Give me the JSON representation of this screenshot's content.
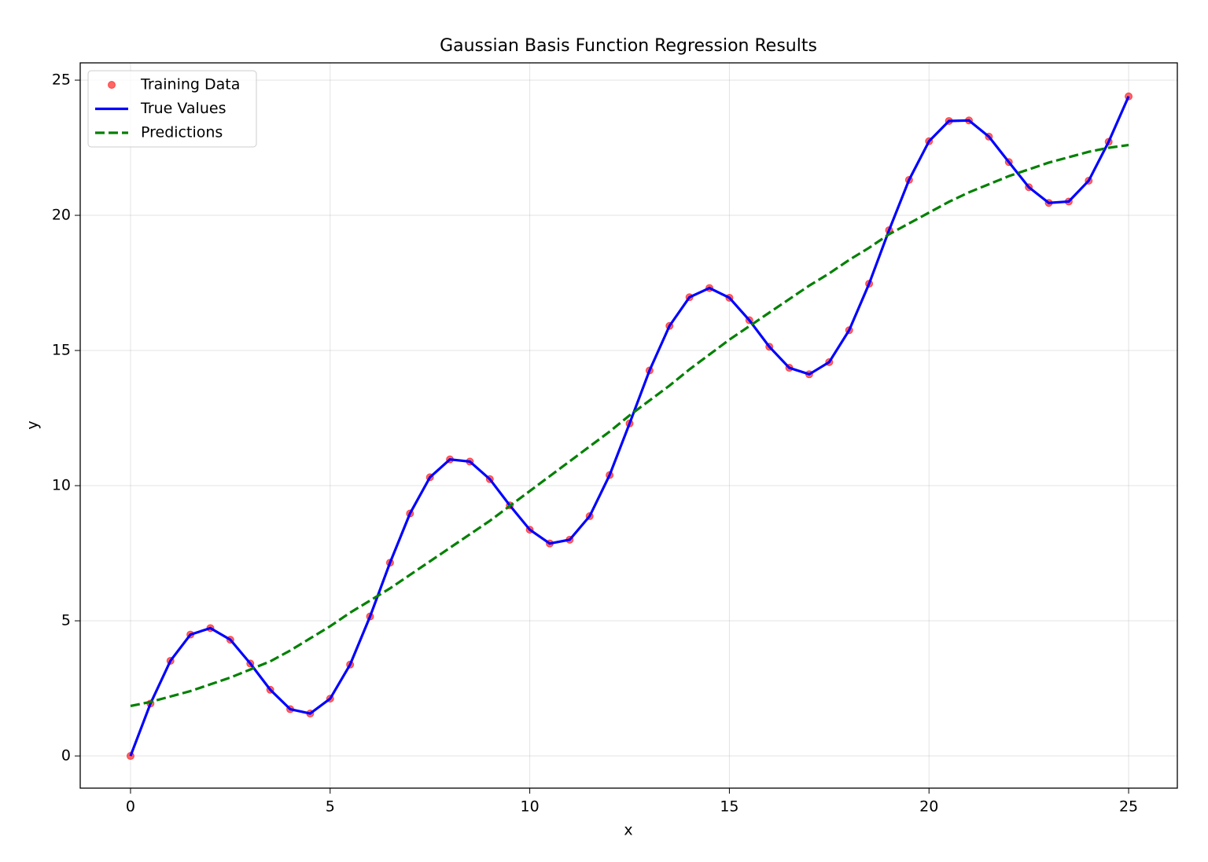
{
  "chart_data": {
    "type": "line",
    "title": "Gaussian Basis Function Regression Results",
    "x_label": "x",
    "y_label": "y",
    "x": [
      0,
      0.5,
      1,
      1.5,
      2,
      2.5,
      3,
      3.5,
      4,
      4.5,
      5,
      5.5,
      6,
      6.5,
      7,
      7.5,
      8,
      8.5,
      9,
      9.5,
      10,
      10.5,
      11,
      11.5,
      12,
      12.5,
      13,
      13.5,
      14,
      14.5,
      15,
      15.5,
      16,
      16.5,
      17,
      17.5,
      18,
      18.5,
      19,
      19.5,
      20,
      20.5,
      21,
      21.5,
      22,
      22.5,
      23,
      23.5,
      24,
      24.5,
      25
    ],
    "series": [
      {
        "name": "Training Data",
        "type": "scatter",
        "color": "#ff0000",
        "values": [
          0,
          1.94,
          3.52,
          4.49,
          4.73,
          4.3,
          3.42,
          2.45,
          1.73,
          1.57,
          2.12,
          3.38,
          5.16,
          7.15,
          8.97,
          10.31,
          10.97,
          10.89,
          10.24,
          9.27,
          8.37,
          7.86,
          8.0,
          8.87,
          10.39,
          12.3,
          14.26,
          15.91,
          16.97,
          17.31,
          16.95,
          16.12,
          15.14,
          14.36,
          14.12,
          14.57,
          15.75,
          17.47,
          19.45,
          21.31,
          22.74,
          23.49,
          23.51,
          22.91,
          21.97,
          21.04,
          20.46,
          20.51,
          21.28,
          22.72,
          24.4
        ]
      },
      {
        "name": "True Values",
        "type": "line",
        "color": "#0000ff",
        "dashed": false,
        "values": [
          0,
          1.94,
          3.52,
          4.49,
          4.73,
          4.3,
          3.42,
          2.45,
          1.73,
          1.57,
          2.12,
          3.38,
          5.16,
          7.15,
          8.97,
          10.31,
          10.97,
          10.89,
          10.24,
          9.27,
          8.37,
          7.86,
          8.0,
          8.87,
          10.39,
          12.3,
          14.26,
          15.91,
          16.97,
          17.31,
          16.95,
          16.12,
          15.14,
          14.36,
          14.12,
          14.57,
          15.75,
          17.47,
          19.45,
          21.31,
          22.74,
          23.49,
          23.51,
          22.91,
          21.97,
          21.04,
          20.46,
          20.51,
          21.28,
          22.72,
          24.4
        ]
      },
      {
        "name": "Predictions",
        "type": "line",
        "color": "#008000",
        "dashed": true,
        "values": [
          1.85,
          2.0,
          2.2,
          2.4,
          2.65,
          2.9,
          3.2,
          3.5,
          3.9,
          4.35,
          4.8,
          5.3,
          5.75,
          6.2,
          6.7,
          7.2,
          7.7,
          8.2,
          8.7,
          9.25,
          9.8,
          10.35,
          10.9,
          11.45,
          12.0,
          12.6,
          13.15,
          13.7,
          14.3,
          14.85,
          15.4,
          15.9,
          16.4,
          16.9,
          17.4,
          17.85,
          18.35,
          18.8,
          19.3,
          19.7,
          20.1,
          20.5,
          20.85,
          21.15,
          21.45,
          21.7,
          21.95,
          22.15,
          22.35,
          22.5,
          22.6
        ]
      }
    ],
    "xlim": [
      -1.26,
      26.22
    ],
    "ylim": [
      -1.19,
      25.64
    ],
    "xticks": [
      0,
      5,
      10,
      15,
      20,
      25
    ],
    "yticks": [
      0,
      5,
      10,
      15,
      20,
      25
    ],
    "grid": true,
    "legend": "upper left"
  }
}
